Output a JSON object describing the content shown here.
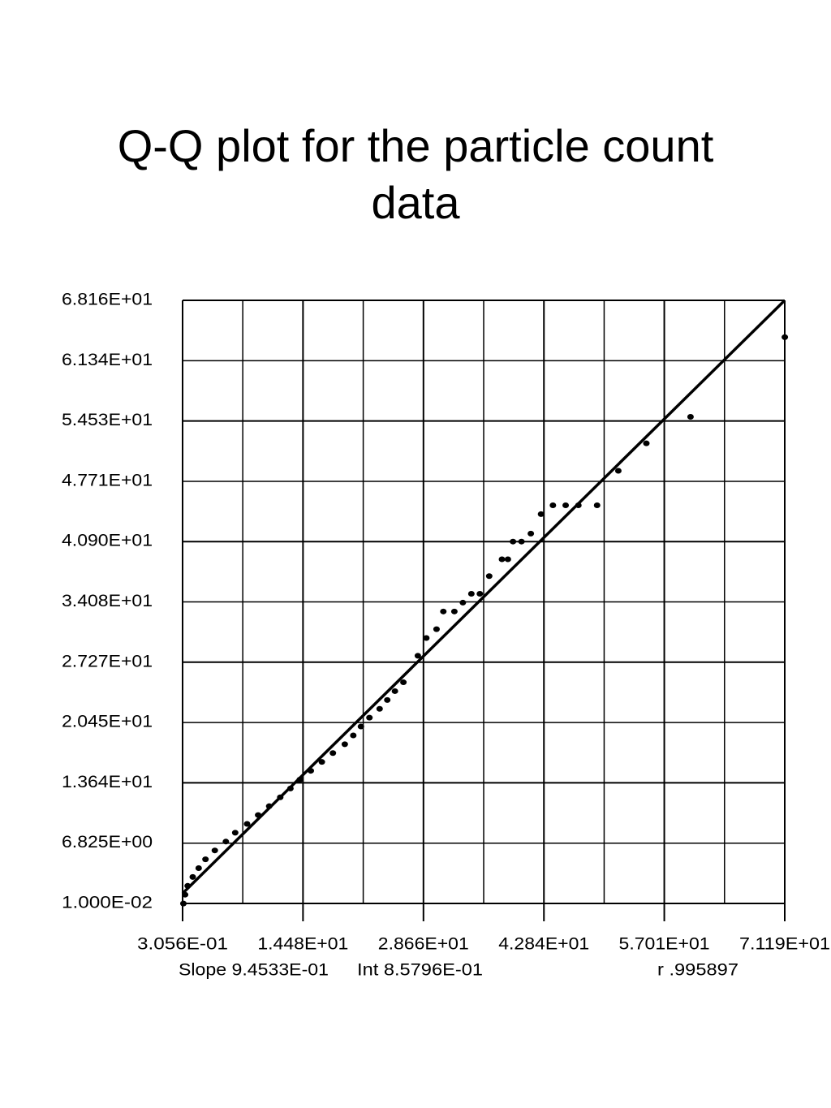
{
  "chart_data": {
    "type": "scatter",
    "title": "Q-Q plot for the particle count data",
    "x": [
      0.4,
      0.6,
      0.9,
      1.5,
      2.2,
      3.0,
      4.1,
      5.4,
      6.5,
      7.9,
      9.2,
      10.5,
      11.8,
      13.0,
      14.1,
      15.4,
      16.7,
      18.0,
      19.4,
      20.4,
      21.3,
      22.3,
      23.5,
      24.4,
      25.3,
      26.3,
      28.0,
      29.0,
      30.2,
      31.0,
      32.3,
      33.3,
      34.3,
      35.3,
      36.4,
      37.9,
      38.6,
      39.2,
      40.2,
      41.3,
      42.5,
      43.9,
      45.4,
      46.9,
      49.1,
      51.6,
      54.9,
      60.1,
      71.2
    ],
    "values": [
      0.0,
      1,
      2,
      3,
      4,
      5,
      6,
      7,
      8,
      9,
      10,
      11,
      12,
      13,
      14,
      15,
      16,
      17,
      18,
      19,
      20,
      21,
      22,
      23,
      24,
      25,
      28,
      30,
      31,
      33,
      33,
      34,
      35,
      35,
      37,
      38.9,
      38.9,
      40.9,
      40.9,
      41.8,
      44,
      45,
      45,
      45,
      45,
      48.9,
      52,
      55,
      64
    ],
    "color": "#000000",
    "xlim": [
      0.3056,
      71.19
    ],
    "ylim": [
      0.01,
      68.16
    ],
    "xticks": [
      {
        "value": 0.3056,
        "label": "3.056E-01"
      },
      {
        "value": 14.48,
        "label": "1.448E+01"
      },
      {
        "value": 28.66,
        "label": "2.866E+01"
      },
      {
        "value": 42.84,
        "label": "4.284E+01"
      },
      {
        "value": 57.01,
        "label": "5.701E+01"
      },
      {
        "value": 71.19,
        "label": "7.119E+01"
      }
    ],
    "xticks_minor": [
      7.39,
      21.57,
      35.75,
      49.93,
      64.1
    ],
    "yticks": [
      {
        "value": 0.01,
        "label": "1.000E-02"
      },
      {
        "value": 6.825,
        "label": "6.825E+00"
      },
      {
        "value": 13.64,
        "label": "1.364E+01"
      },
      {
        "value": 20.45,
        "label": "2.045E+01"
      },
      {
        "value": 27.27,
        "label": "2.727E+01"
      },
      {
        "value": 34.08,
        "label": "3.408E+01"
      },
      {
        "value": 40.9,
        "label": "4.090E+01"
      },
      {
        "value": 47.71,
        "label": "4.771E+01"
      },
      {
        "value": 54.53,
        "label": "5.453E+01"
      },
      {
        "value": 61.34,
        "label": "6.134E+01"
      },
      {
        "value": 68.16,
        "label": "6.816E+01"
      }
    ],
    "grid": true,
    "fit": {
      "slope": 0.94533,
      "intercept": 0.85796
    },
    "annotations": [
      "Slope 9.4533E-01",
      "Int 8.5796E-01",
      "r .995897"
    ]
  }
}
